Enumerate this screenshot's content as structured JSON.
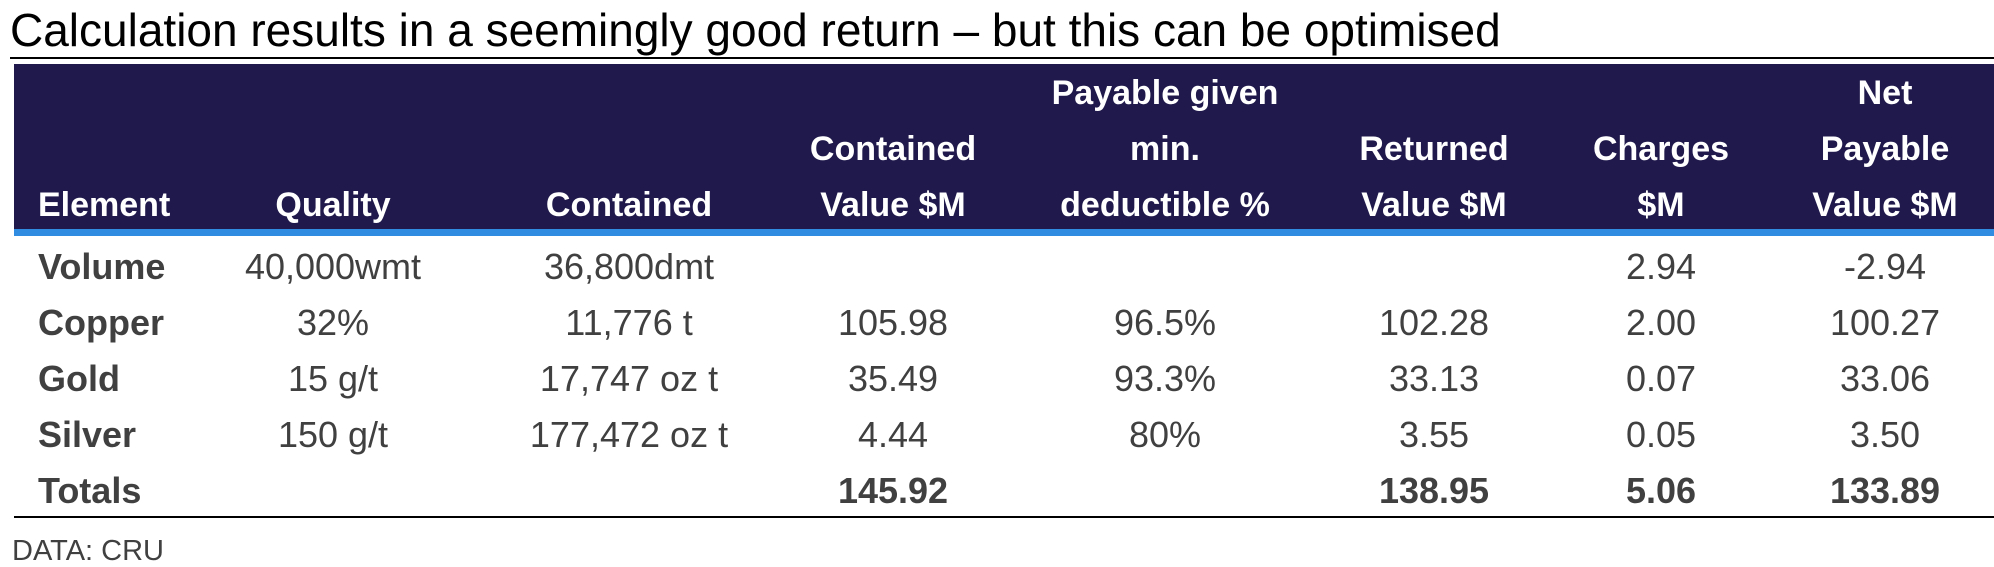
{
  "header": {
    "title": "Calculation results in a seemingly good return – but this can be optimised"
  },
  "table": {
    "columns": [
      [
        "Element"
      ],
      [
        "Quality"
      ],
      [
        "Contained"
      ],
      [
        "Contained",
        "Value $M"
      ],
      [
        "Payable given",
        "min.",
        "deductible %"
      ],
      [
        "Returned",
        "Value $M"
      ],
      [
        "Charges",
        "$M"
      ],
      [
        "Net",
        "Payable",
        "Value $M"
      ]
    ],
    "rows": [
      [
        "Volume",
        "40,000wmt",
        "36,800dmt",
        null,
        null,
        null,
        "2.94",
        "-2.94"
      ],
      [
        "Copper",
        "32%",
        "11,776 t",
        "105.98",
        "96.5%",
        "102.28",
        "2.00",
        "100.27"
      ],
      [
        "Gold",
        "15 g/t",
        "17,747 oz t",
        "35.49",
        "93.3%",
        "33.13",
        "0.07",
        "33.06"
      ],
      [
        "Silver",
        "150 g/t",
        "177,472 oz t",
        "4.44",
        "80%",
        "3.55",
        "0.05",
        "3.50"
      ],
      [
        "Totals",
        null,
        null,
        "145.92",
        null,
        "138.95",
        "5.06",
        "133.89"
      ]
    ]
  },
  "footer": {
    "source": "DATA: CRU"
  }
}
